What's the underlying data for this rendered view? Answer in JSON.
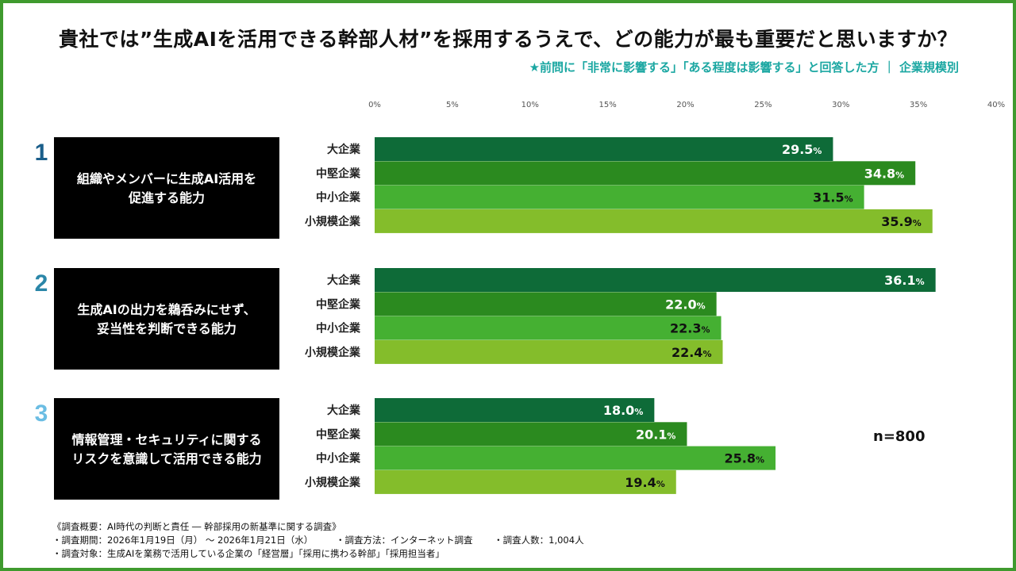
{
  "title": "貴社では”生成AIを活用できる幹部人材”を採用するうえで、どの能力が最も重要だと思いますか？",
  "subtitle": "★前問に「非常に影響する」「ある程度は影響する」と回答した方 ｜ 企業規模別",
  "n_label": "n=800",
  "footnotes": [
    "《調査概要：AI時代の判断と責任 ― 幹部採用の新基準に関する調査》",
    "・調査期間：2026年1月19日（月） 〜 2026年1月21日（水）　　　・調査方法：インターネット調査　　 ・調査人数：1,004人",
    "・調査対象：生成AIを業務で活用している企業の「経営層」「採用に携わる幹部」「採用担当者」"
  ],
  "colors": {
    "frame": "#3f9a2e",
    "subtitle": "#1ba7a2",
    "series": [
      "#0e6b38",
      "#2b8a1f",
      "#45b032",
      "#84bd2b"
    ],
    "rank": [
      "#1a5e8a",
      "#2a86a8",
      "#6bbde3"
    ]
  },
  "chart_data": {
    "type": "bar",
    "orientation": "horizontal",
    "xlim": [
      0,
      40
    ],
    "x_ticks": [
      "0%",
      "5%",
      "10%",
      "15%",
      "20%",
      "25%",
      "30%",
      "35%",
      "40%"
    ],
    "categories": [
      "大企業",
      "中堅企業",
      "中小企業",
      "小規模企業"
    ],
    "unit": "%",
    "groups": [
      {
        "rank": "1",
        "label_lines": [
          "組織やメンバーに生成AI活用を",
          "促進する能力"
        ],
        "values": [
          29.5,
          34.8,
          31.5,
          35.9
        ]
      },
      {
        "rank": "2",
        "label_lines": [
          "生成AIの出力を鵜呑みにせず、",
          "妥当性を判断できる能力"
        ],
        "values": [
          36.1,
          22.0,
          22.3,
          22.4
        ]
      },
      {
        "rank": "3",
        "label_lines": [
          "情報管理・セキュリティに関する",
          "リスクを意識して活用できる能力"
        ],
        "values": [
          18.0,
          20.1,
          25.8,
          19.4
        ]
      }
    ]
  }
}
